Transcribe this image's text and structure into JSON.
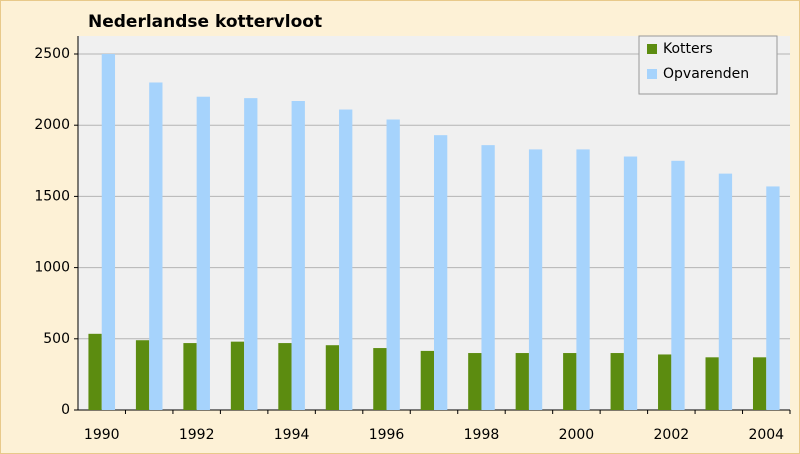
{
  "chart_data": {
    "type": "bar",
    "title": "Nederlandse kottervloot",
    "categories": [
      "1990",
      null,
      "1992",
      null,
      "1994",
      null,
      "1996",
      null,
      "1998",
      null,
      "2000",
      null,
      "2002",
      null,
      "2004"
    ],
    "series": [
      {
        "name": "Kotters",
        "color": "#5c8c10",
        "values": [
          535,
          490,
          470,
          480,
          470,
          455,
          435,
          415,
          400,
          400,
          400,
          400,
          390,
          370,
          370
        ]
      },
      {
        "name": "Opvarenden",
        "color": "#a6d3fc",
        "values": [
          2500,
          2300,
          2200,
          2190,
          2170,
          2110,
          2040,
          1930,
          1860,
          1830,
          1830,
          1780,
          1750,
          1660,
          1570
        ]
      }
    ],
    "ylim": [
      0,
      2500
    ],
    "yticks": [
      0,
      500,
      1000,
      1500,
      2000,
      2500
    ],
    "grid": true,
    "legend": "upper right"
  }
}
